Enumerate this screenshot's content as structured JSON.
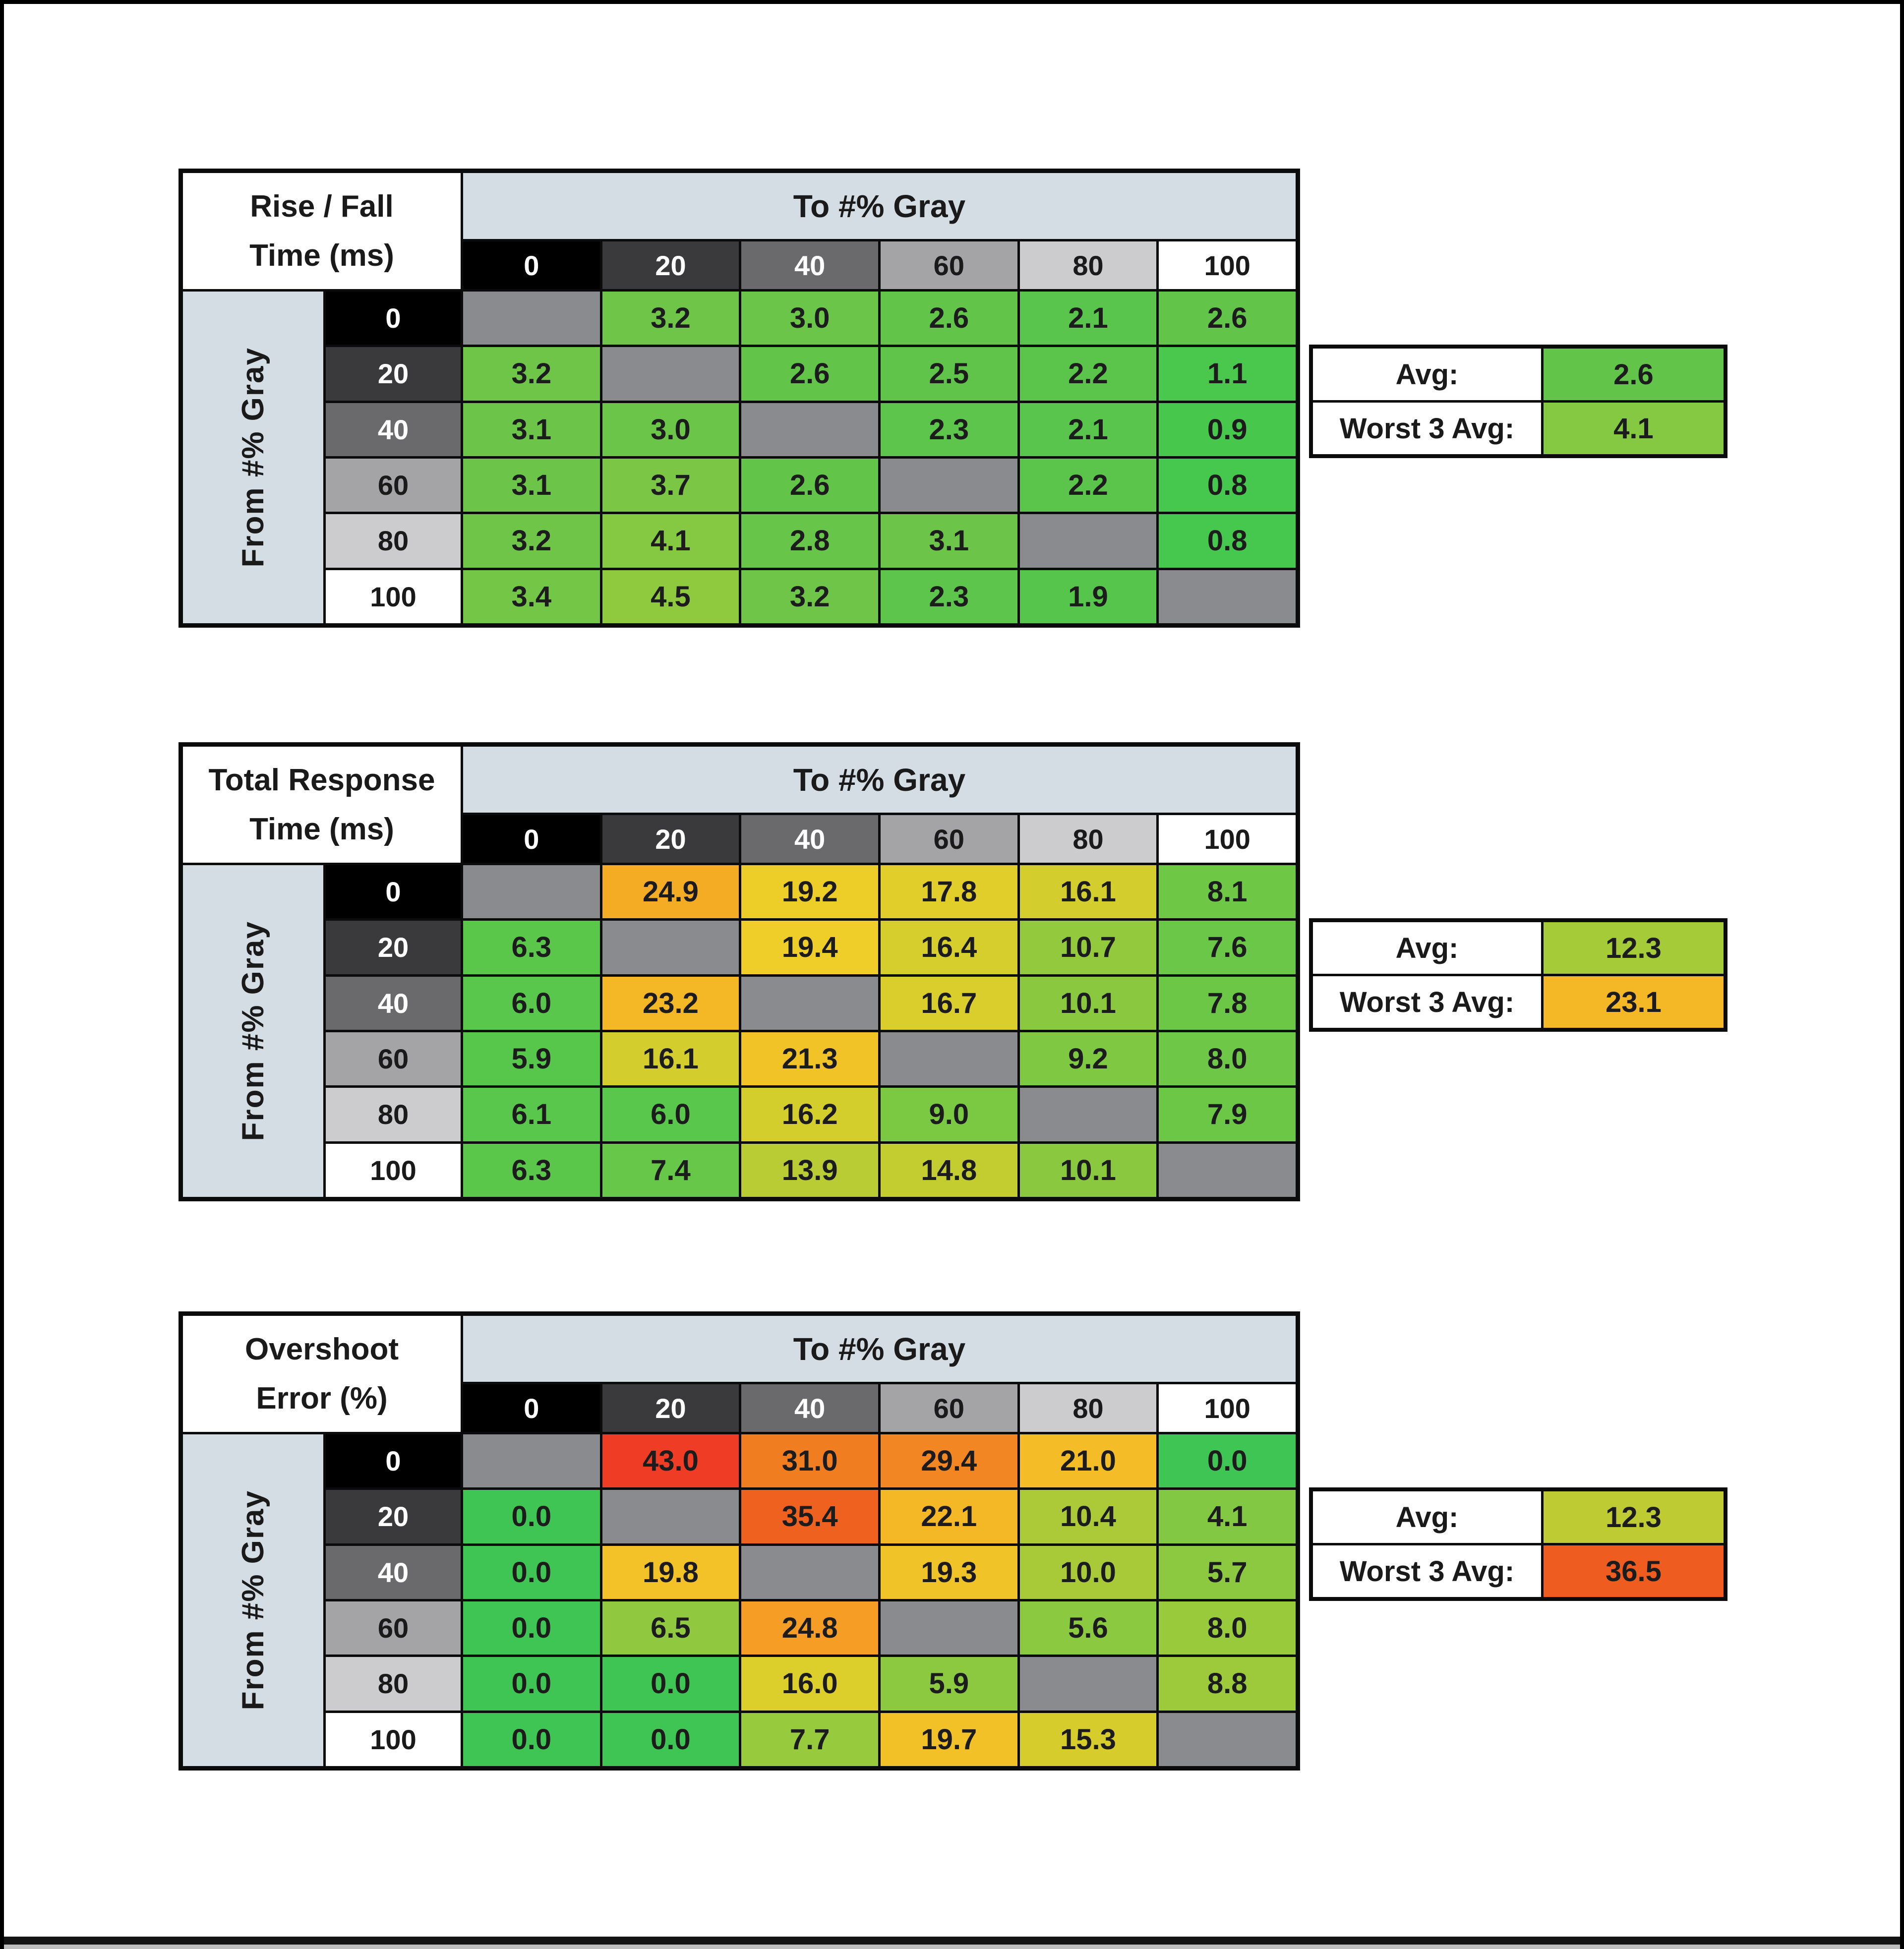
{
  "page": {
    "background": "#FFFFFF",
    "frame_color": "#000000",
    "footer_bar_color": "#141414",
    "footer_strip_color": "#BEBEBE"
  },
  "shared": {
    "to_header": "To #% Gray",
    "from_header": "From #% Gray",
    "levels": [
      "0",
      "20",
      "40",
      "60",
      "80",
      "100"
    ],
    "level_bg": [
      "#000000",
      "#3A3A3C",
      "#6A6A6C",
      "#A4A4A6",
      "#CCCCCE",
      "#FFFFFF"
    ],
    "level_fg": [
      "#FFFFFF",
      "#FFFFFF",
      "#FFFFFF",
      "#1A1A1A",
      "#1A1A1A",
      "#1A1A1A"
    ],
    "header_band_color": "#D5DDE4",
    "diagonal_color": "#898B8E",
    "grid_line_color": "#0B0B0B",
    "value_text_color": "#1C1C1C",
    "avg_label": "Avg:",
    "worst_label": "Worst 3 Avg:"
  },
  "chart_data": [
    {
      "type": "heatmap",
      "id": "rise-fall",
      "title_line1": "Rise / Fall",
      "title_line2": "Time (ms)",
      "x_label": "To #% Gray",
      "y_label": "From #% Gray",
      "x_ticks": [
        "0",
        "20",
        "40",
        "60",
        "80",
        "100"
      ],
      "y_ticks": [
        "0",
        "20",
        "40",
        "60",
        "80",
        "100"
      ],
      "values": [
        [
          null,
          "3.2",
          "3.0",
          "2.6",
          "2.1",
          "2.6"
        ],
        [
          "3.2",
          null,
          "2.6",
          "2.5",
          "2.2",
          "1.1"
        ],
        [
          "3.1",
          "3.0",
          null,
          "2.3",
          "2.1",
          "0.9"
        ],
        [
          "3.1",
          "3.7",
          "2.6",
          null,
          "2.2",
          "0.8"
        ],
        [
          "3.2",
          "4.1",
          "2.8",
          "3.1",
          null,
          "0.8"
        ],
        [
          "3.4",
          "4.5",
          "3.2",
          "2.3",
          "1.9",
          null
        ]
      ],
      "avg": "2.6",
      "worst_3_avg": "4.1",
      "color_scale": [
        [
          0.8,
          "#45C84D"
        ],
        [
          2.0,
          "#57C54C"
        ],
        [
          2.6,
          "#63C44A"
        ],
        [
          3.0,
          "#6AC548"
        ],
        [
          3.7,
          "#7BC645"
        ],
        [
          4.5,
          "#8FC93E"
        ]
      ]
    },
    {
      "type": "heatmap",
      "id": "total-response",
      "title_line1": "Total Response",
      "title_line2": "Time (ms)",
      "x_label": "To #% Gray",
      "y_label": "From #% Gray",
      "x_ticks": [
        "0",
        "20",
        "40",
        "60",
        "80",
        "100"
      ],
      "y_ticks": [
        "0",
        "20",
        "40",
        "60",
        "80",
        "100"
      ],
      "values": [
        [
          null,
          "24.9",
          "19.2",
          "17.8",
          "16.1",
          "8.1"
        ],
        [
          "6.3",
          null,
          "19.4",
          "16.4",
          "10.7",
          "7.6"
        ],
        [
          "6.0",
          "23.2",
          null,
          "16.7",
          "10.1",
          "7.8"
        ],
        [
          "5.9",
          "16.1",
          "21.3",
          null,
          "9.2",
          "8.0"
        ],
        [
          "6.1",
          "6.0",
          "16.2",
          "9.0",
          null,
          "7.9"
        ],
        [
          "6.3",
          "7.4",
          "13.9",
          "14.8",
          "10.1",
          null
        ]
      ],
      "avg": "12.3",
      "worst_3_avg": "23.1",
      "color_scale": [
        [
          5.9,
          "#57C74B"
        ],
        [
          8.1,
          "#6FC746"
        ],
        [
          10.7,
          "#92C93D"
        ],
        [
          13.9,
          "#BACC33"
        ],
        [
          16.4,
          "#D6CE2C"
        ],
        [
          19.4,
          "#EFCE29"
        ],
        [
          21.3,
          "#F2C327"
        ],
        [
          24.9,
          "#F5AC25"
        ]
      ]
    },
    {
      "type": "heatmap",
      "id": "overshoot",
      "title_line1": "Overshoot",
      "title_line2": "Error (%)",
      "x_label": "To #% Gray",
      "y_label": "From #% Gray",
      "x_ticks": [
        "0",
        "20",
        "40",
        "60",
        "80",
        "100"
      ],
      "y_ticks": [
        "0",
        "20",
        "40",
        "60",
        "80",
        "100"
      ],
      "values": [
        [
          null,
          "43.0",
          "31.0",
          "29.4",
          "21.0",
          "0.0"
        ],
        [
          "0.0",
          null,
          "35.4",
          "22.1",
          "10.4",
          "4.1"
        ],
        [
          "0.0",
          "19.8",
          null,
          "19.3",
          "10.0",
          "5.7"
        ],
        [
          "0.0",
          "6.5",
          "24.8",
          null,
          "5.6",
          "8.0"
        ],
        [
          "0.0",
          "0.0",
          "16.0",
          "5.9",
          null,
          "8.8"
        ],
        [
          "0.0",
          "0.0",
          "7.7",
          "19.7",
          "15.3",
          null
        ]
      ],
      "avg": "12.3",
      "worst_3_avg": "36.5",
      "color_scale": [
        [
          0.0,
          "#3FC553"
        ],
        [
          4.1,
          "#83C843"
        ],
        [
          8.8,
          "#9DCA3B"
        ],
        [
          12.3,
          "#BECB33"
        ],
        [
          16.0,
          "#DCCE2B"
        ],
        [
          19.8,
          "#F3C128"
        ],
        [
          22.1,
          "#F4B827"
        ],
        [
          24.8,
          "#F59D24"
        ],
        [
          31.0,
          "#F07E21"
        ],
        [
          35.4,
          "#EF611E"
        ],
        [
          43.0,
          "#EE3D24"
        ]
      ]
    }
  ]
}
